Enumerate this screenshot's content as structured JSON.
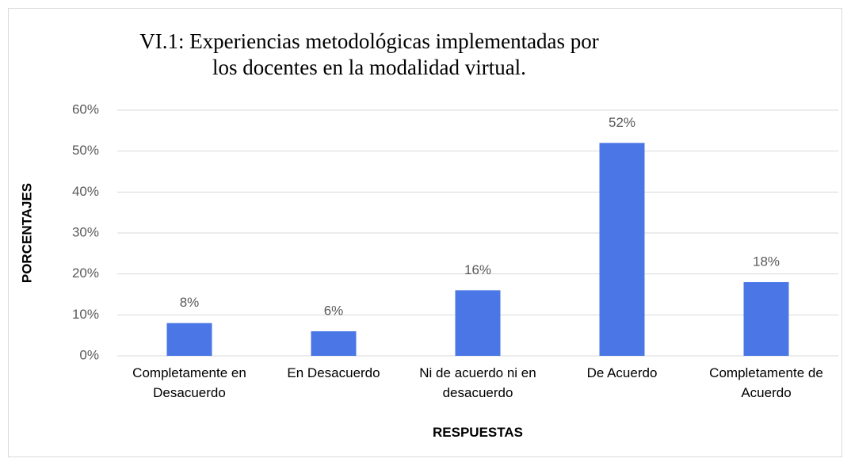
{
  "chart_data": {
    "type": "bar",
    "title": "VI.1: Experiencias metodológicas implementadas por los docentes en la modalidad virtual.",
    "x_label": "RESPUESTAS",
    "y_label": "PORCENTAJES",
    "categories": [
      "Completamente en Desacuerdo",
      "En Desacuerdo",
      "Ni de acuerdo ni en desacuerdo",
      "De Acuerdo",
      "Completamente de Acuerdo"
    ],
    "values": [
      8,
      6,
      16,
      52,
      18
    ],
    "value_labels": [
      "8%",
      "6%",
      "16%",
      "52%",
      "18%"
    ],
    "color": "#4a76e6",
    "ylim": [
      0,
      60
    ],
    "yticks": [
      {
        "value": 0,
        "label": "0%"
      },
      {
        "value": 10,
        "label": "10%"
      },
      {
        "value": 20,
        "label": "20%"
      },
      {
        "value": 30,
        "label": "30%"
      },
      {
        "value": 40,
        "label": "40%"
      },
      {
        "value": 50,
        "label": "50%"
      },
      {
        "value": 60,
        "label": "60%"
      }
    ],
    "grid": true
  }
}
